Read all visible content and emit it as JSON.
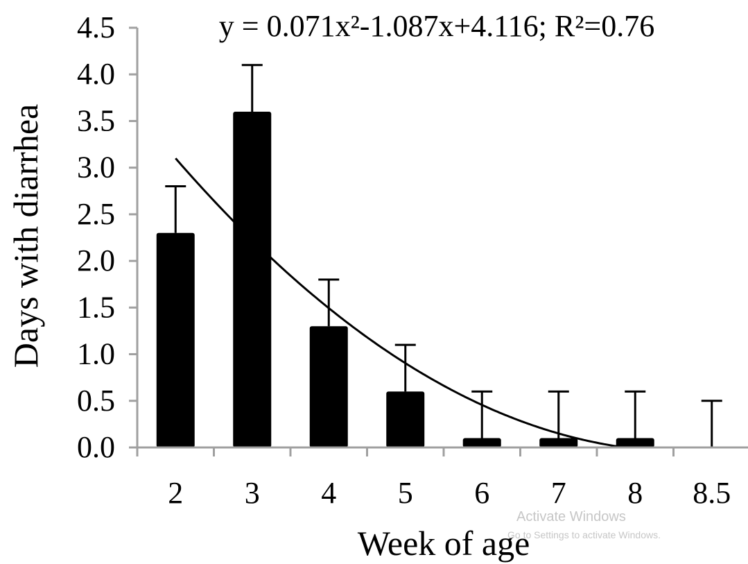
{
  "chart_data": {
    "type": "bar",
    "title": "y = 0.071x²-1.087x+4.116; R²=0.76",
    "xlabel": "Week of age",
    "ylabel": "Days with diarrhea",
    "categories": [
      "2",
      "3",
      "4",
      "5",
      "6",
      "7",
      "8",
      "8.5"
    ],
    "values": [
      2.3,
      3.6,
      1.3,
      0.6,
      0.1,
      0.1,
      0.1,
      0.0
    ],
    "error_upper": [
      2.8,
      4.1,
      1.8,
      1.1,
      0.6,
      0.6,
      0.6,
      0.5
    ],
    "ylim": [
      0,
      4.5
    ],
    "yticks": [
      "0.0",
      "0.5",
      "1.0",
      "1.5",
      "2.0",
      "2.5",
      "3.0",
      "3.5",
      "4.0",
      "4.5"
    ],
    "trendline": {
      "type": "polynomial",
      "coefficients": [
        0.071,
        -1.087,
        4.116
      ],
      "r_squared": 0.76
    },
    "bar_color": "#000000",
    "grid": false,
    "legend": "none"
  },
  "watermark": {
    "title": "Activate Windows",
    "subtitle": "Go to Settings to activate Windows."
  }
}
